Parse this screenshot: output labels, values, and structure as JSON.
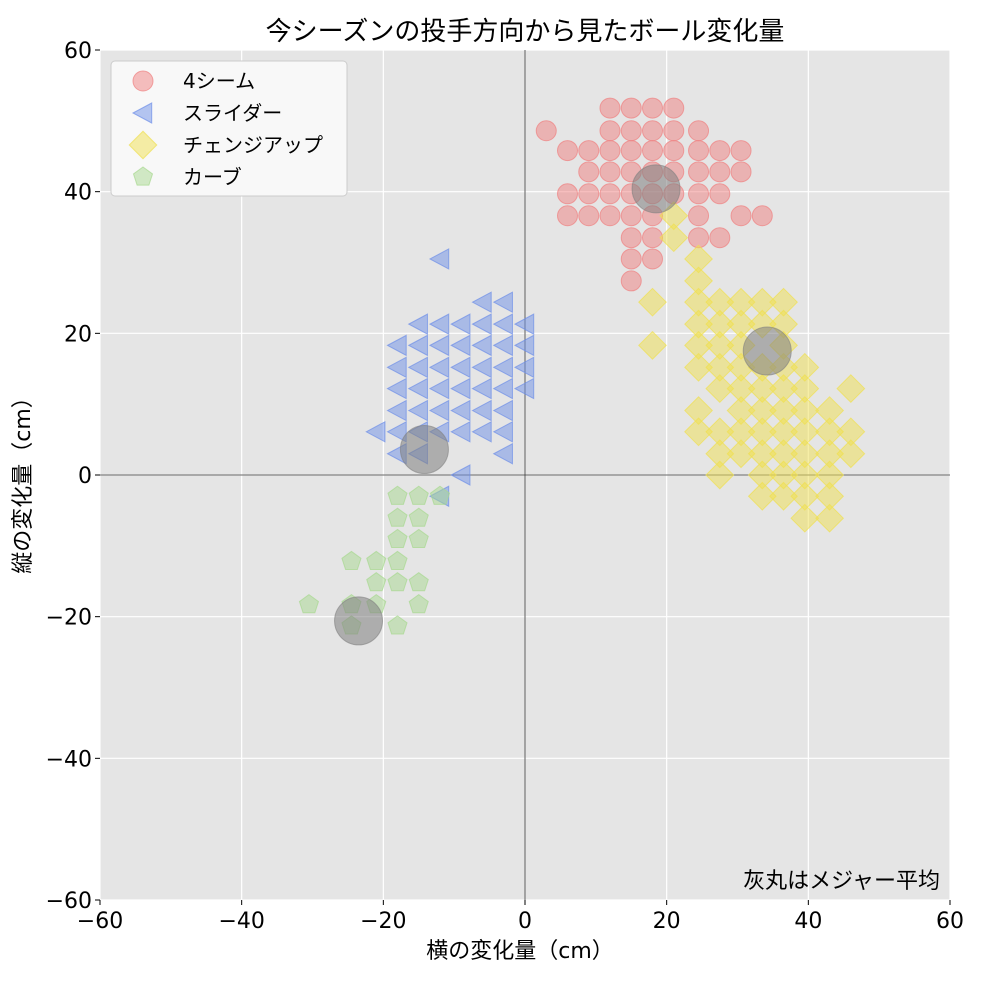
{
  "chart_data": {
    "type": "scatter",
    "title": "今シーズンの投手方向から見たボール変化量",
    "xlabel": "横の変化量（cm）",
    "ylabel": "縦の変化量（cm）",
    "xlim": [
      -60,
      60
    ],
    "ylim": [
      -60,
      60
    ],
    "xticks": [
      -60,
      -40,
      -20,
      0,
      20,
      40,
      60
    ],
    "yticks": [
      -60,
      -40,
      -20,
      0,
      20,
      40,
      60
    ],
    "xtick_labels": [
      "−60",
      "−40",
      "−20",
      "0",
      "20",
      "40",
      "60"
    ],
    "ytick_labels": [
      "−60",
      "−40",
      "−20",
      "0",
      "20",
      "40",
      "60"
    ],
    "grid": true,
    "legend_position": "top-left",
    "annotation": "灰丸はメジャー平均",
    "series": [
      {
        "name": "4シーム",
        "marker": "circle",
        "color": "#f08080",
        "points": [
          [
            3,
            48.6
          ],
          [
            12,
            51.8
          ],
          [
            15,
            51.8
          ],
          [
            18,
            51.8
          ],
          [
            21,
            51.8
          ],
          [
            12,
            48.6
          ],
          [
            15,
            48.6
          ],
          [
            18,
            48.6
          ],
          [
            21,
            48.6
          ],
          [
            24.5,
            48.6
          ],
          [
            6,
            45.8
          ],
          [
            9,
            45.8
          ],
          [
            12,
            45.8
          ],
          [
            15,
            45.8
          ],
          [
            18,
            45.8
          ],
          [
            21,
            45.8
          ],
          [
            24.5,
            45.8
          ],
          [
            27.5,
            45.8
          ],
          [
            30.5,
            45.8
          ],
          [
            9,
            42.8
          ],
          [
            12,
            42.8
          ],
          [
            15,
            42.8
          ],
          [
            18,
            42.8
          ],
          [
            21,
            42.8
          ],
          [
            24.5,
            42.8
          ],
          [
            27.5,
            42.8
          ],
          [
            30.5,
            42.8
          ],
          [
            6,
            39.7
          ],
          [
            9,
            39.7
          ],
          [
            12,
            39.7
          ],
          [
            15,
            39.7
          ],
          [
            18,
            39.7
          ],
          [
            21,
            39.7
          ],
          [
            24.5,
            39.7
          ],
          [
            27.5,
            39.7
          ],
          [
            6,
            36.6
          ],
          [
            9,
            36.6
          ],
          [
            12,
            36.6
          ],
          [
            15,
            36.6
          ],
          [
            18,
            36.6
          ],
          [
            24.5,
            36.6
          ],
          [
            30.5,
            36.6
          ],
          [
            33.5,
            36.6
          ],
          [
            15,
            33.5
          ],
          [
            18,
            33.5
          ],
          [
            24.5,
            33.5
          ],
          [
            27.5,
            33.5
          ],
          [
            15,
            30.5
          ],
          [
            18,
            30.5
          ],
          [
            15,
            27.4
          ]
        ]
      },
      {
        "name": "スライダー",
        "marker": "triangle-left",
        "color": "#6e8fe8",
        "points": [
          [
            -12,
            30.5
          ],
          [
            -6,
            24.4
          ],
          [
            -3,
            24.4
          ],
          [
            -15,
            21.3
          ],
          [
            -12,
            21.3
          ],
          [
            -9,
            21.3
          ],
          [
            -6,
            21.3
          ],
          [
            -3,
            21.3
          ],
          [
            0,
            21.3
          ],
          [
            -18,
            18.3
          ],
          [
            -15,
            18.3
          ],
          [
            -12,
            18.3
          ],
          [
            -9,
            18.3
          ],
          [
            -6,
            18.3
          ],
          [
            -3,
            18.3
          ],
          [
            0,
            18.3
          ],
          [
            -18,
            15.2
          ],
          [
            -15,
            15.2
          ],
          [
            -12,
            15.2
          ],
          [
            -9,
            15.2
          ],
          [
            -6,
            15.2
          ],
          [
            -3,
            15.2
          ],
          [
            0,
            15.2
          ],
          [
            -18,
            12.2
          ],
          [
            -15,
            12.2
          ],
          [
            -12,
            12.2
          ],
          [
            -9,
            12.2
          ],
          [
            -6,
            12.2
          ],
          [
            -3,
            12.2
          ],
          [
            0,
            12.2
          ],
          [
            -18,
            9.1
          ],
          [
            -15,
            9.1
          ],
          [
            -12,
            9.1
          ],
          [
            -9,
            9.1
          ],
          [
            -6,
            9.1
          ],
          [
            -3,
            9.1
          ],
          [
            -21,
            6.1
          ],
          [
            -18,
            6.1
          ],
          [
            -15,
            6.1
          ],
          [
            -12,
            6.1
          ],
          [
            -9,
            6.1
          ],
          [
            -6,
            6.1
          ],
          [
            -3,
            6.1
          ],
          [
            -18,
            3.0
          ],
          [
            -15,
            3.0
          ],
          [
            -3,
            3.0
          ],
          [
            -9,
            0
          ],
          [
            -12,
            -3.0
          ]
        ]
      },
      {
        "name": "チェンジアップ",
        "marker": "diamond",
        "color": "#f0e050",
        "points": [
          [
            21,
            36.6
          ],
          [
            21,
            33.5
          ],
          [
            24.5,
            30.5
          ],
          [
            24.5,
            27.4
          ],
          [
            18,
            24.4
          ],
          [
            24.5,
            24.4
          ],
          [
            27.5,
            24.4
          ],
          [
            30.5,
            24.4
          ],
          [
            33.5,
            24.4
          ],
          [
            36.5,
            24.4
          ],
          [
            24.5,
            21.3
          ],
          [
            27.5,
            21.3
          ],
          [
            30.5,
            21.3
          ],
          [
            33.5,
            21.3
          ],
          [
            36.5,
            21.3
          ],
          [
            18,
            18.3
          ],
          [
            24.5,
            18.3
          ],
          [
            27.5,
            18.3
          ],
          [
            30.5,
            18.3
          ],
          [
            36.5,
            18.3
          ],
          [
            24.5,
            15.2
          ],
          [
            27.5,
            15.2
          ],
          [
            30.5,
            15.2
          ],
          [
            33.5,
            15.2
          ],
          [
            36.5,
            15.2
          ],
          [
            39.5,
            15.2
          ],
          [
            27.5,
            12.2
          ],
          [
            30.5,
            12.2
          ],
          [
            33.5,
            12.2
          ],
          [
            36.5,
            12.2
          ],
          [
            39.5,
            12.2
          ],
          [
            46,
            12.2
          ],
          [
            24.5,
            9.1
          ],
          [
            30.5,
            9.1
          ],
          [
            33.5,
            9.1
          ],
          [
            36.5,
            9.1
          ],
          [
            39.5,
            9.1
          ],
          [
            43,
            9.1
          ],
          [
            24.5,
            6.1
          ],
          [
            27.5,
            6.1
          ],
          [
            30.5,
            6.1
          ],
          [
            33.5,
            6.1
          ],
          [
            36.5,
            6.1
          ],
          [
            39.5,
            6.1
          ],
          [
            43,
            6.1
          ],
          [
            46,
            6.1
          ],
          [
            27.5,
            3.0
          ],
          [
            30.5,
            3.0
          ],
          [
            33.5,
            3.0
          ],
          [
            36.5,
            3.0
          ],
          [
            39.5,
            3.0
          ],
          [
            43,
            3.0
          ],
          [
            46,
            3.0
          ],
          [
            27.5,
            0
          ],
          [
            33.5,
            0
          ],
          [
            36.5,
            0
          ],
          [
            39.5,
            0
          ],
          [
            43,
            0
          ],
          [
            33.5,
            -3.0
          ],
          [
            36.5,
            -3.0
          ],
          [
            39.5,
            -3.0
          ],
          [
            43,
            -3.0
          ],
          [
            39.5,
            -6.1
          ],
          [
            43,
            -6.1
          ]
        ]
      },
      {
        "name": "カーブ",
        "marker": "pentagon",
        "color": "#a8d890",
        "points": [
          [
            -18,
            -3.0
          ],
          [
            -15,
            -3.0
          ],
          [
            -12,
            -3.0
          ],
          [
            -18,
            -6.1
          ],
          [
            -15,
            -6.1
          ],
          [
            -18,
            -9.1
          ],
          [
            -15,
            -9.1
          ],
          [
            -24.5,
            -12.2
          ],
          [
            -21,
            -12.2
          ],
          [
            -18,
            -12.2
          ],
          [
            -21,
            -15.2
          ],
          [
            -18,
            -15.2
          ],
          [
            -15,
            -15.2
          ],
          [
            -30.5,
            -18.3
          ],
          [
            -24.5,
            -18.3
          ],
          [
            -21,
            -18.3
          ],
          [
            -15,
            -18.3
          ],
          [
            -24.5,
            -21.3
          ],
          [
            -18,
            -21.3
          ]
        ]
      }
    ],
    "averages": [
      {
        "pitch": "4シーム",
        "x": 18.5,
        "y": 40.4
      },
      {
        "pitch": "スライダー",
        "x": -14.2,
        "y": 3.6
      },
      {
        "pitch": "チェンジアップ",
        "x": 34.2,
        "y": 17.5
      },
      {
        "pitch": "カーブ",
        "x": -23.5,
        "y": -20.6
      }
    ],
    "average_color": "#808080"
  }
}
